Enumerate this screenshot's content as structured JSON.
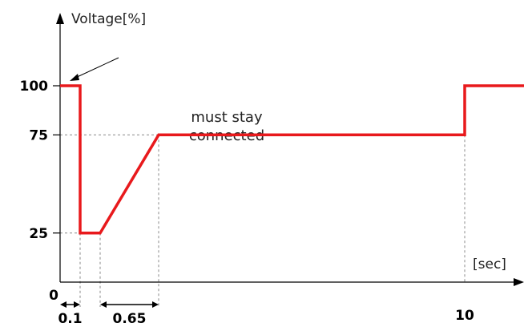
{
  "chart_data": {
    "type": "line",
    "title": "",
    "ylabel": "Voltage[%]",
    "xlabel": "[sec]",
    "series": [
      {
        "x": [
          0,
          0.1,
          0.1,
          0.2,
          0.85,
          10,
          10,
          11
        ],
        "y": [
          100,
          100,
          25,
          25,
          75,
          75,
          100,
          100
        ]
      }
    ],
    "y_ticks": [
      {
        "value": 25,
        "label": "25"
      },
      {
        "value": 75,
        "label": "75"
      },
      {
        "value": 100,
        "label": "100"
      }
    ],
    "origin_label": "0",
    "x_tick_labels": [
      {
        "text": "10"
      }
    ],
    "intervals": [
      {
        "from": 0,
        "to": 0.1,
        "label": "0.1"
      },
      {
        "from": 0.2,
        "to": 0.85,
        "label": "0.65"
      }
    ],
    "annotation_lines": [
      "must stay",
      "connected"
    ],
    "line_color": "#e8191c",
    "guide_color": "#888888"
  }
}
